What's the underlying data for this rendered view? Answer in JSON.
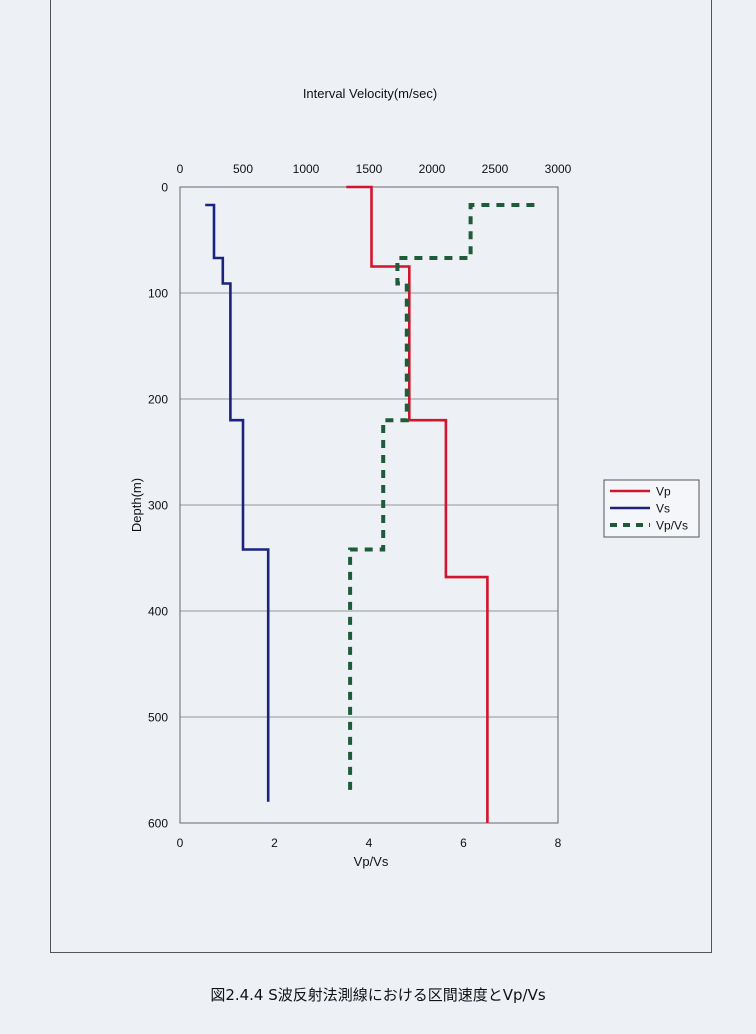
{
  "chart_data": {
    "type": "line",
    "title": "Interval Velocity(m/sec)",
    "xlabel_bottom": "Vp/Vs",
    "ylabel": "Depth(m)",
    "x_top_range": [
      0,
      3000
    ],
    "x_top_ticks": [
      "0",
      "500",
      "1000",
      "1500",
      "2000",
      "2500",
      "3000"
    ],
    "x_bottom_range": [
      0,
      8
    ],
    "x_bottom_ticks": [
      "0",
      "2",
      "4",
      "6",
      "8"
    ],
    "y_range": [
      0,
      600
    ],
    "y_inverted": true,
    "y_ticks": [
      "0",
      "100",
      "200",
      "300",
      "400",
      "500",
      "600"
    ],
    "grid": "horizontal",
    "legend_position": "right",
    "series": [
      {
        "name": "Vp",
        "axis": "top",
        "color": "#d2142d",
        "style": "solid",
        "points": [
          [
            1320,
            0
          ],
          [
            1520,
            0
          ],
          [
            1520,
            75
          ],
          [
            1820,
            75
          ],
          [
            1820,
            220
          ],
          [
            2110,
            220
          ],
          [
            2110,
            368
          ],
          [
            2440,
            368
          ],
          [
            2440,
            600
          ]
        ]
      },
      {
        "name": "Vs",
        "axis": "top",
        "color": "#1a237e",
        "style": "solid",
        "points": [
          [
            200,
            17
          ],
          [
            270,
            17
          ],
          [
            270,
            67
          ],
          [
            340,
            67
          ],
          [
            340,
            91
          ],
          [
            400,
            91
          ],
          [
            400,
            220
          ],
          [
            500,
            220
          ],
          [
            500,
            342
          ],
          [
            700,
            342
          ],
          [
            700,
            580
          ]
        ]
      },
      {
        "name": "Vp/Vs",
        "axis": "bottom",
        "color": "#1f5a3a",
        "style": "dashed",
        "points": [
          [
            7.5,
            17
          ],
          [
            6.15,
            17
          ],
          [
            6.15,
            67
          ],
          [
            4.6,
            67
          ],
          [
            4.6,
            91
          ],
          [
            4.8,
            91
          ],
          [
            4.8,
            220
          ],
          [
            4.3,
            220
          ],
          [
            4.3,
            342
          ],
          [
            3.6,
            342
          ],
          [
            3.6,
            575
          ]
        ]
      }
    ]
  },
  "caption": "図2.4.4 S波反射法測線における区間速度とVp/Vs"
}
